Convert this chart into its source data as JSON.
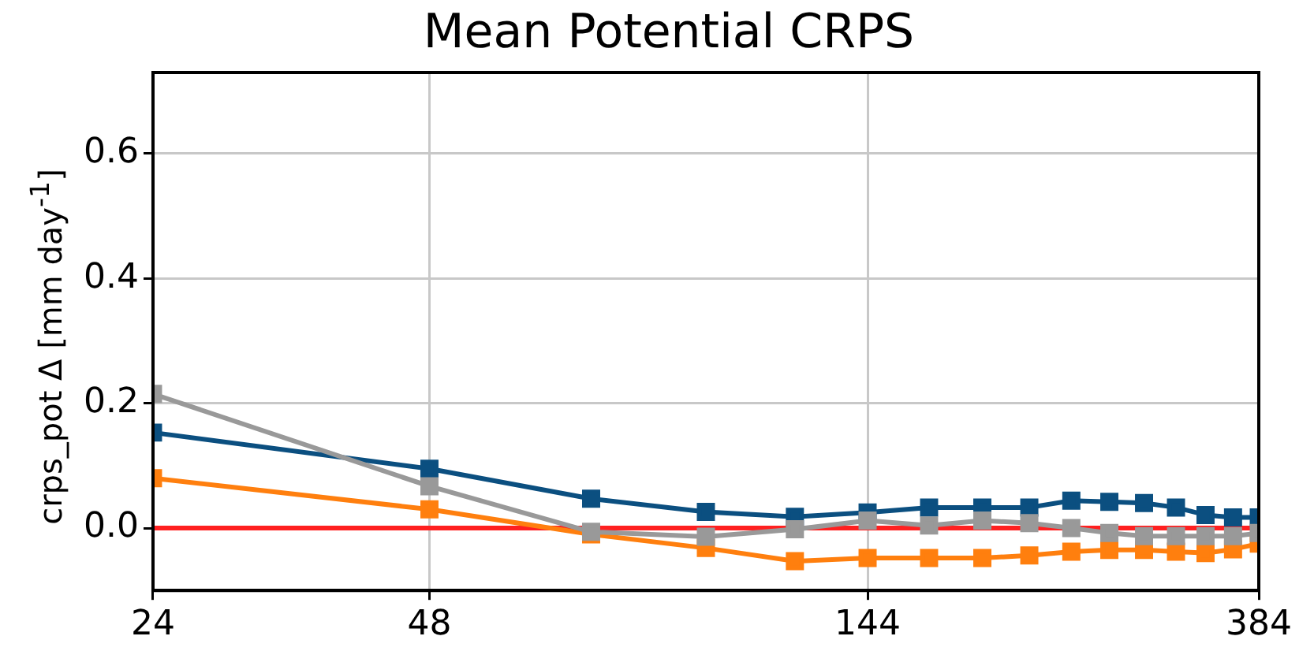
{
  "chart_data": {
    "type": "line",
    "title": "Mean Potential CRPS",
    "ylabel": "crps_pot Δ [mm day$^{-1}$]",
    "x": [
      24,
      48,
      72,
      96,
      120,
      144,
      168,
      192,
      216,
      240,
      264,
      288,
      312,
      336,
      360,
      384
    ],
    "log": "x",
    "xlim": [
      24,
      384
    ],
    "xticks": [
      24,
      48,
      144,
      384
    ],
    "ylim": [
      -0.1,
      0.73
    ],
    "yticks": [
      {
        "value": 0,
        "label": "0.0"
      },
      {
        "value": 0.2,
        "label": "0.2"
      },
      {
        "value": 0.4,
        "label": "0.4"
      },
      {
        "value": 0.6,
        "label": "0.6"
      }
    ],
    "grid": true,
    "marker": "square",
    "line_style": "solid",
    "legend": false,
    "ref_lines": [
      {
        "axis": "y",
        "value": 0,
        "color": "#ff2020"
      }
    ],
    "series": [
      {
        "color": "#999999",
        "values": [
          0.215,
          0.067,
          -0.006,
          -0.014,
          -0.002,
          0.012,
          0.004,
          0.012,
          0.008,
          0,
          -0.008,
          -0.013,
          -0.013,
          -0.013,
          -0.013,
          -0.008
        ]
      },
      {
        "color": "#0b4f80",
        "values": [
          0.153,
          0.095,
          0.047,
          0.026,
          0.018,
          0.025,
          0.033,
          0.033,
          0.033,
          0.044,
          0.042,
          0.04,
          0.033,
          0.021,
          0.017,
          0.017
        ]
      },
      {
        "color": "#ff7f0e",
        "values": [
          0.08,
          0.03,
          -0.01,
          -0.032,
          -0.053,
          -0.048,
          -0.048,
          -0.048,
          -0.044,
          -0.038,
          -0.035,
          -0.035,
          -0.038,
          -0.04,
          -0.034,
          -0.025
        ]
      }
    ]
  }
}
